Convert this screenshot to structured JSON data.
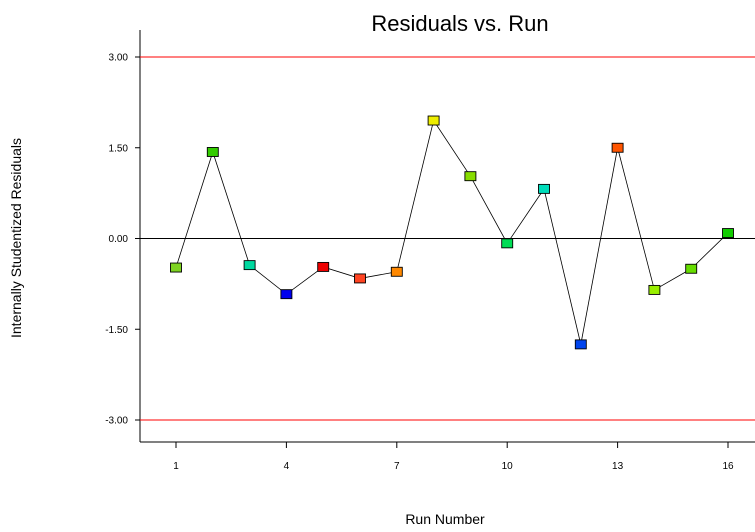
{
  "chart_data": {
    "type": "scatter",
    "title": "Residuals vs. Run",
    "xlabel": "Run Number",
    "ylabel": "Internally Studentized Residuals",
    "xlim": [
      0,
      16.5
    ],
    "ylim": [
      -3.4,
      3.4
    ],
    "x_ticks": [
      1,
      4,
      7,
      10,
      13,
      16
    ],
    "y_ticks": [
      "3.00",
      "1.50",
      "0.00",
      "-1.50",
      "-3.00"
    ],
    "y_tick_values": [
      3,
      1.5,
      0,
      -1.5,
      -3
    ],
    "limit_lines": [
      3,
      -3
    ],
    "limit_color": "#ff0000",
    "zero_line": 0,
    "points": [
      {
        "x": 1,
        "y": -0.48,
        "color": "#7ed321"
      },
      {
        "x": 2,
        "y": 1.43,
        "color": "#33cc00"
      },
      {
        "x": 3,
        "y": -0.44,
        "color": "#00d9a0"
      },
      {
        "x": 4,
        "y": -0.92,
        "color": "#0000ee"
      },
      {
        "x": 5,
        "y": -0.47,
        "color": "#ee0000"
      },
      {
        "x": 6,
        "y": -0.66,
        "color": "#ff4422"
      },
      {
        "x": 7,
        "y": -0.55,
        "color": "#ff8800"
      },
      {
        "x": 8,
        "y": 1.95,
        "color": "#eeee00"
      },
      {
        "x": 9,
        "y": 1.03,
        "color": "#88dd00"
      },
      {
        "x": 10,
        "y": -0.08,
        "color": "#00dd55"
      },
      {
        "x": 11,
        "y": 0.82,
        "color": "#00ddbb"
      },
      {
        "x": 12,
        "y": -1.75,
        "color": "#0044ee"
      },
      {
        "x": 13,
        "y": 1.5,
        "color": "#ff5500"
      },
      {
        "x": 14,
        "y": -0.85,
        "color": "#99ee00"
      },
      {
        "x": 15,
        "y": -0.5,
        "color": "#66dd00"
      },
      {
        "x": 16,
        "y": 0.09,
        "color": "#11cc00"
      }
    ]
  }
}
